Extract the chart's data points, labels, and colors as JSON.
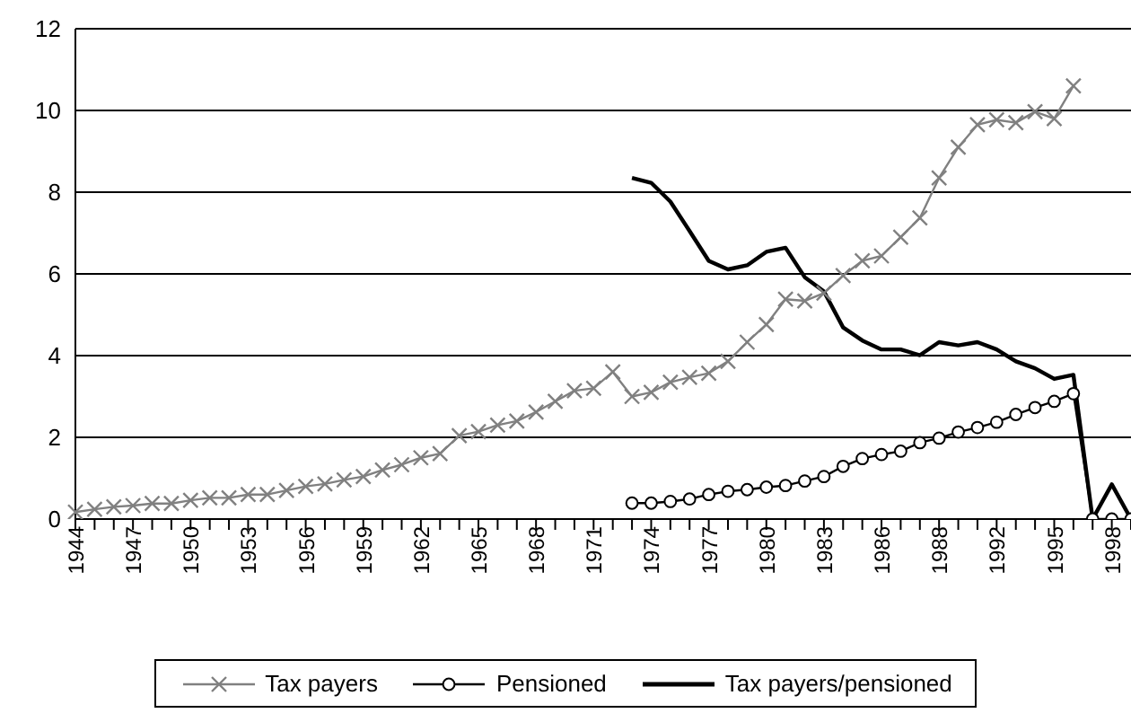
{
  "chart_data": {
    "type": "line",
    "categories": [
      "1944",
      null,
      null,
      "1947",
      null,
      null,
      "1950",
      null,
      null,
      "1953",
      null,
      null,
      "1956",
      null,
      null,
      "1959",
      null,
      null,
      "1962",
      null,
      null,
      "1965",
      null,
      null,
      "1968",
      null,
      null,
      "1971",
      null,
      null,
      "1974",
      null,
      null,
      "1977",
      null,
      null,
      "1980",
      null,
      null,
      "1983",
      null,
      null,
      "1986",
      null,
      null,
      "1988",
      null,
      null,
      "1992",
      null,
      null,
      "1995",
      null,
      null,
      "1998",
      null
    ],
    "series": [
      {
        "name": "Tax payers",
        "color": "#808080",
        "marker": "cross",
        "values": [
          0.17,
          0.24,
          0.3,
          0.33,
          0.38,
          0.38,
          0.46,
          0.52,
          0.52,
          0.6,
          0.6,
          0.7,
          0.8,
          0.86,
          0.96,
          1.04,
          1.2,
          1.33,
          1.5,
          1.6,
          2.04,
          2.14,
          2.3,
          2.4,
          2.62,
          2.88,
          3.14,
          3.2,
          3.6,
          3.0,
          3.1,
          3.35,
          3.47,
          3.57,
          3.86,
          4.33,
          4.76,
          5.38,
          5.34,
          5.53,
          5.96,
          6.32,
          6.44,
          6.9,
          7.37,
          8.35,
          9.1,
          9.65,
          9.77,
          9.7,
          9.97,
          9.8,
          10.6,
          null,
          null,
          null
        ]
      },
      {
        "name": "Pensioned",
        "color": "#000000",
        "marker": "circle",
        "values": [
          null,
          null,
          null,
          null,
          null,
          null,
          null,
          null,
          null,
          null,
          null,
          null,
          null,
          null,
          null,
          null,
          null,
          null,
          null,
          null,
          null,
          null,
          null,
          null,
          null,
          null,
          null,
          null,
          null,
          0.39,
          0.39,
          0.43,
          0.49,
          0.6,
          0.68,
          0.72,
          0.78,
          0.82,
          0.93,
          1.04,
          1.29,
          1.48,
          1.58,
          1.66,
          1.87,
          1.98,
          2.13,
          2.24,
          2.37,
          2.56,
          2.73,
          2.88,
          3.07,
          0,
          0,
          0
        ]
      },
      {
        "name": "Tax payers/pensioned",
        "color": "#000000",
        "marker": "none",
        "values": [
          null,
          null,
          null,
          null,
          null,
          null,
          null,
          null,
          null,
          null,
          null,
          null,
          null,
          null,
          null,
          null,
          null,
          null,
          null,
          null,
          null,
          null,
          null,
          null,
          null,
          null,
          null,
          null,
          null,
          8.35,
          8.23,
          7.77,
          7.05,
          6.32,
          6.11,
          6.21,
          6.54,
          6.64,
          5.92,
          5.57,
          4.69,
          4.37,
          4.15,
          4.15,
          4.01,
          4.33,
          4.25,
          4.33,
          4.15,
          3.86,
          3.69,
          3.43,
          3.53,
          0,
          0.85,
          0
        ]
      }
    ],
    "ylim": [
      0,
      12
    ],
    "yticks": [
      0,
      2,
      4,
      6,
      8,
      10,
      12
    ],
    "grid": "y",
    "legend": "bottom",
    "line_style": "solid"
  }
}
